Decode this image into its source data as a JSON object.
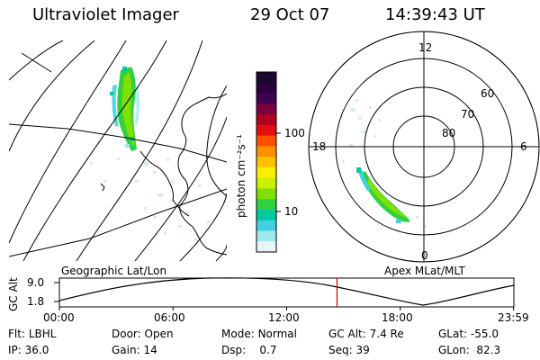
{
  "header": {
    "instrument": "Ultraviolet Imager",
    "date": "29 Oct 07",
    "time": "14:39:43 UT"
  },
  "colorbar": {
    "unit_label": "photon cm⁻²s⁻¹",
    "ticks": [
      "100",
      "10"
    ],
    "colors": [
      "#1a0a2e",
      "#2a0040",
      "#400050",
      "#7a0040",
      "#b00020",
      "#e01010",
      "#ff5000",
      "#ff9000",
      "#ffc000",
      "#f8f000",
      "#c8f000",
      "#80e000",
      "#30d040",
      "#00c8a0",
      "#40d0e0",
      "#a0e8f0",
      "#e8f4f8"
    ]
  },
  "geo_panel": {
    "label": "Geographic Lat/Lon"
  },
  "polar_panel": {
    "label": "Apex MLat/MLT",
    "mlt_labels": [
      "12",
      "18",
      "6",
      "0"
    ],
    "lat_labels": [
      "60",
      "70",
      "80"
    ]
  },
  "timeline": {
    "ylabel": "GC Alt",
    "yticks": [
      "9.0",
      "1.8"
    ],
    "xticks": [
      "00:00",
      "06:00",
      "12:00",
      "18:00",
      "23:59"
    ],
    "marker_time_hours": 14.66
  },
  "info": {
    "row1": [
      {
        "label": "Flt:",
        "value": "LBHL"
      },
      {
        "label": "Door:",
        "value": "Open"
      },
      {
        "label": "Mode:",
        "value": "Normal"
      },
      {
        "label": "GC Alt:",
        "value": "7.4 Re"
      },
      {
        "label": "GLat:",
        "value": "-55.0"
      }
    ],
    "row2": [
      {
        "label": "IP:",
        "value": "36.0"
      },
      {
        "label": "Gain:",
        "value": "14"
      },
      {
        "label": "Dsp:",
        "value": "0.7"
      },
      {
        "label": "Seq:",
        "value": "39"
      },
      {
        "label": "GLon:",
        "value": "82.3"
      }
    ]
  }
}
